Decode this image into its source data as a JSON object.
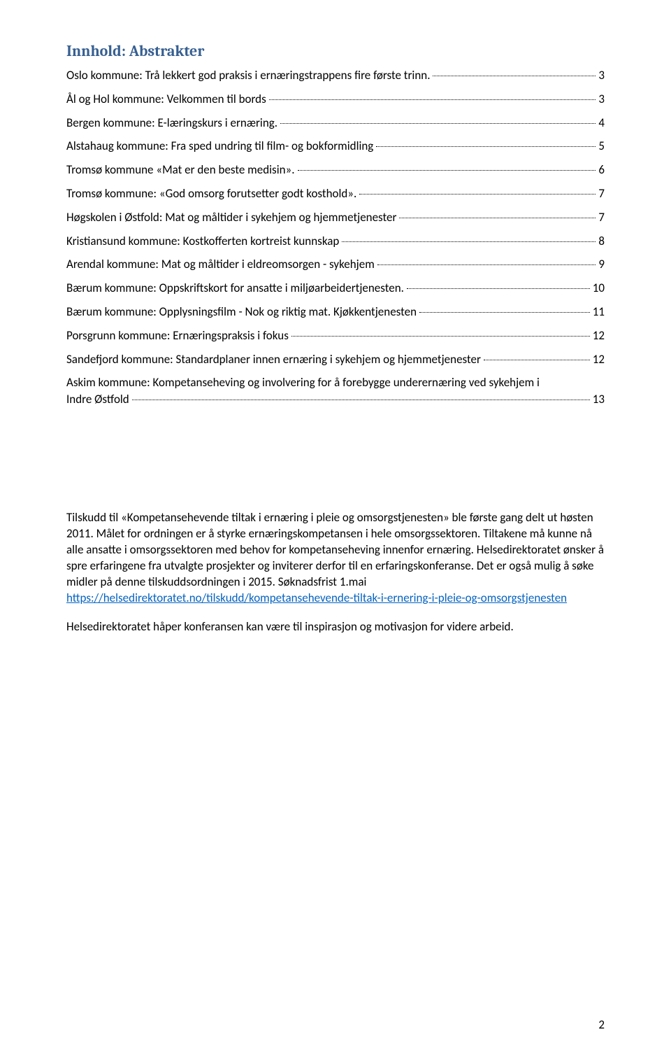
{
  "heading": "Innhold: Abstrakter",
  "toc": [
    {
      "label": "Oslo kommune: Trå lekkert god praksis i ernæringstrappens fire første trinn.",
      "page": "3"
    },
    {
      "label": "Ål og Hol kommune: Velkommen til bords",
      "page": "3"
    },
    {
      "label": "Bergen kommune: E-læringskurs i ernæring.",
      "page": "4"
    },
    {
      "label": "Alstahaug kommune: Fra sped undring til film- og bokformidling",
      "page": "5"
    },
    {
      "label": "Tromsø kommune «Mat er den beste medisin».",
      "page": "6"
    },
    {
      "label": "Tromsø kommune: «God omsorg forutsetter godt kosthold».",
      "page": "7"
    },
    {
      "label": "Høgskolen i Østfold: Mat og måltider i sykehjem og hjemmetjenester",
      "page": "7"
    },
    {
      "label": "Kristiansund kommune: Kostkofferten kortreist kunnskap",
      "page": "8"
    },
    {
      "label": "Arendal kommune: Mat og måltider i eldreomsorgen - sykehjem",
      "page": "9"
    },
    {
      "label": "Bærum kommune: Oppskriftskort for ansatte i miljøarbeidertjenesten.",
      "page": "10"
    },
    {
      "label": "Bærum kommune: Opplysningsfilm - Nok og riktig mat. Kjøkkentjenesten",
      "page": "11"
    },
    {
      "label": "Porsgrunn kommune: Ernæringspraksis i fokus",
      "page": "12"
    },
    {
      "label": "Sandefjord kommune: Standardplaner innen ernæring i sykehjem og hjemmetjenester",
      "page": "12"
    },
    {
      "label1": "Askim kommune: Kompetanseheving og involvering for å forebygge underernæring ved sykehjem i",
      "label2": "Indre Østfold",
      "page": "13",
      "multiline": true
    }
  ],
  "paragraph1": "Tilskudd til «Kompetansehevende tiltak i ernæring i pleie og omsorgstjenesten» ble første gang delt ut høsten 2011. Målet for ordningen er å styrke ernæringskompetansen i hele omsorgssektoren. Tiltakene må kunne nå alle ansatte i omsorgssektoren med behov for kompetanseheving innenfor ernæring. Helsedirektoratet ønsker å spre erfaringene fra utvalgte prosjekter og inviterer derfor til en erfaringskonferanse. Det er også mulig å søke midler på denne tilskuddsordningen i 2015. Søknadsfrist 1.mai",
  "link_text": "https://helsedirektoratet.no/tilskudd/kompetansehevende-tiltak-i-ernering-i-pleie-og-omsorgstjenesten",
  "paragraph2": "Helsedirektoratet håper konferansen kan være til inspirasjon og motivasjon for videre arbeid.",
  "page_number": "2"
}
